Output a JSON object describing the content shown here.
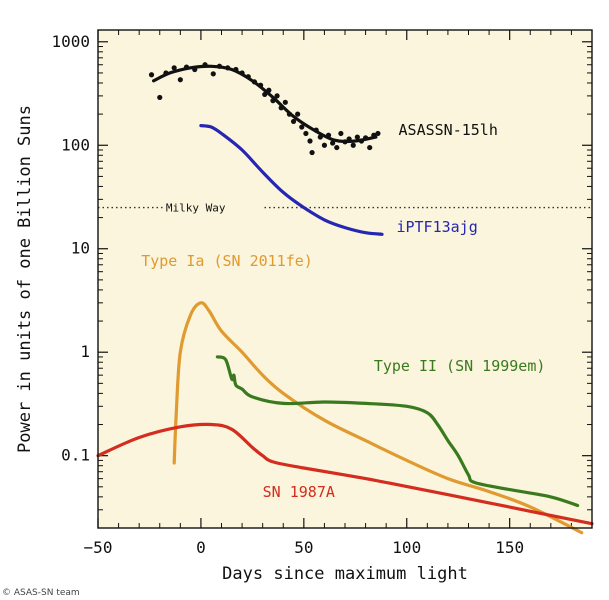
{
  "credit": "© ASAS-SN team",
  "chart_data": {
    "type": "line",
    "title": "",
    "xlabel": "Days since maximum light",
    "ylabel": "Power in units of one Billion Suns",
    "xlim": [
      -50,
      190
    ],
    "ylim": [
      0.02,
      1300
    ],
    "yscale": "log",
    "xticks": [
      -50,
      0,
      50,
      100,
      150
    ],
    "xtick_labels": [
      "−50",
      "0",
      "50",
      "100",
      "150"
    ],
    "yticks": [
      0.1,
      1,
      10,
      100,
      1000
    ],
    "ytick_labels": [
      "0.1",
      "1",
      "10",
      "100",
      "1000"
    ],
    "background": "#faf5dc",
    "grid": false,
    "reference_line": {
      "label": "Milky Way",
      "y": 25
    },
    "series": [
      {
        "name": "ASASSN-15lh",
        "color": "#111111",
        "points": [
          [
            -23,
            420
          ],
          [
            -15,
            500
          ],
          [
            -5,
            560
          ],
          [
            5,
            580
          ],
          [
            15,
            540
          ],
          [
            25,
            420
          ],
          [
            35,
            290
          ],
          [
            45,
            190
          ],
          [
            55,
            140
          ],
          [
            65,
            112
          ],
          [
            75,
            110
          ],
          [
            85,
            120
          ]
        ],
        "observations": [
          [
            -24,
            480
          ],
          [
            -20,
            290
          ],
          [
            -17,
            500
          ],
          [
            -13,
            560
          ],
          [
            -10,
            430
          ],
          [
            -7,
            570
          ],
          [
            -3,
            540
          ],
          [
            2,
            600
          ],
          [
            6,
            490
          ],
          [
            9,
            580
          ],
          [
            13,
            560
          ],
          [
            17,
            540
          ],
          [
            20,
            500
          ],
          [
            23,
            460
          ],
          [
            26,
            410
          ],
          [
            29,
            380
          ],
          [
            31,
            310
          ],
          [
            33,
            340
          ],
          [
            35,
            270
          ],
          [
            37,
            300
          ],
          [
            39,
            230
          ],
          [
            41,
            260
          ],
          [
            43,
            200
          ],
          [
            45,
            170
          ],
          [
            47,
            200
          ],
          [
            49,
            150
          ],
          [
            51,
            130
          ],
          [
            53,
            110
          ],
          [
            54,
            85
          ],
          [
            56,
            140
          ],
          [
            58,
            120
          ],
          [
            60,
            100
          ],
          [
            62,
            125
          ],
          [
            64,
            105
          ],
          [
            66,
            95
          ],
          [
            68,
            130
          ],
          [
            70,
            108
          ],
          [
            72,
            115
          ],
          [
            74,
            100
          ],
          [
            76,
            120
          ],
          [
            78,
            110
          ],
          [
            80,
            118
          ],
          [
            82,
            95
          ],
          [
            84,
            125
          ],
          [
            86,
            130
          ]
        ]
      },
      {
        "name": "iPTF13ajg",
        "color": "#2626b3",
        "points": [
          [
            0,
            155
          ],
          [
            5,
            150
          ],
          [
            10,
            130
          ],
          [
            20,
            90
          ],
          [
            30,
            55
          ],
          [
            40,
            35
          ],
          [
            50,
            25
          ],
          [
            60,
            19
          ],
          [
            70,
            16
          ],
          [
            80,
            14.3
          ],
          [
            88,
            13.8
          ]
        ]
      },
      {
        "name": "Type Ia (SN 2011fe)",
        "color": "#e09a30",
        "points": [
          [
            -13,
            0.085
          ],
          [
            -12,
            0.25
          ],
          [
            -10,
            1.0
          ],
          [
            -5,
            2.3
          ],
          [
            0,
            3.0
          ],
          [
            4,
            2.5
          ],
          [
            10,
            1.6
          ],
          [
            20,
            1.0
          ],
          [
            30,
            0.6
          ],
          [
            40,
            0.4
          ],
          [
            60,
            0.22
          ],
          [
            80,
            0.14
          ],
          [
            100,
            0.09
          ],
          [
            120,
            0.06
          ],
          [
            140,
            0.045
          ],
          [
            160,
            0.032
          ],
          [
            185,
            0.018
          ]
        ]
      },
      {
        "name": "Type II (SN 1999em)",
        "color": "#3a7a1e",
        "points": [
          [
            8,
            0.9
          ],
          [
            12,
            0.85
          ],
          [
            15,
            0.55
          ],
          [
            16,
            0.6
          ],
          [
            17,
            0.48
          ],
          [
            20,
            0.44
          ],
          [
            25,
            0.37
          ],
          [
            40,
            0.32
          ],
          [
            60,
            0.33
          ],
          [
            80,
            0.32
          ],
          [
            100,
            0.3
          ],
          [
            110,
            0.26
          ],
          [
            115,
            0.2
          ],
          [
            120,
            0.14
          ],
          [
            125,
            0.1
          ],
          [
            130,
            0.065
          ],
          [
            133,
            0.055
          ],
          [
            150,
            0.047
          ],
          [
            170,
            0.04
          ],
          [
            183,
            0.033
          ]
        ]
      },
      {
        "name": "SN 1987A",
        "color": "#d42c1e",
        "points": [
          [
            -50,
            0.1
          ],
          [
            -30,
            0.15
          ],
          [
            -10,
            0.19
          ],
          [
            5,
            0.2
          ],
          [
            15,
            0.18
          ],
          [
            25,
            0.12
          ],
          [
            30,
            0.1
          ],
          [
            35,
            0.087
          ],
          [
            50,
            0.076
          ],
          [
            80,
            0.06
          ],
          [
            110,
            0.046
          ],
          [
            140,
            0.035
          ],
          [
            160,
            0.029
          ],
          [
            190,
            0.022
          ]
        ]
      }
    ],
    "labels": [
      {
        "series": "ASASSN-15lh",
        "text": "ASASSN-15lh",
        "x": 96,
        "y": 125,
        "color": "#111111"
      },
      {
        "series": "iPTF13ajg",
        "text": "iPTF13ajg",
        "x": 95,
        "y": 14.5,
        "color": "#2626b3"
      },
      {
        "series": "Type Ia (SN 2011fe)",
        "text": "Type Ia (SN 2011fe)",
        "x": -29,
        "y": 6.8,
        "color": "#e09a30"
      },
      {
        "series": "Type II (SN 1999em)",
        "text": "Type II (SN 1999em)",
        "x": 84,
        "y": 0.66,
        "color": "#3a7a1e"
      },
      {
        "series": "SN 1987A",
        "text": "SN 1987A",
        "x": 30,
        "y": 0.04,
        "color": "#d42c1e"
      }
    ]
  }
}
